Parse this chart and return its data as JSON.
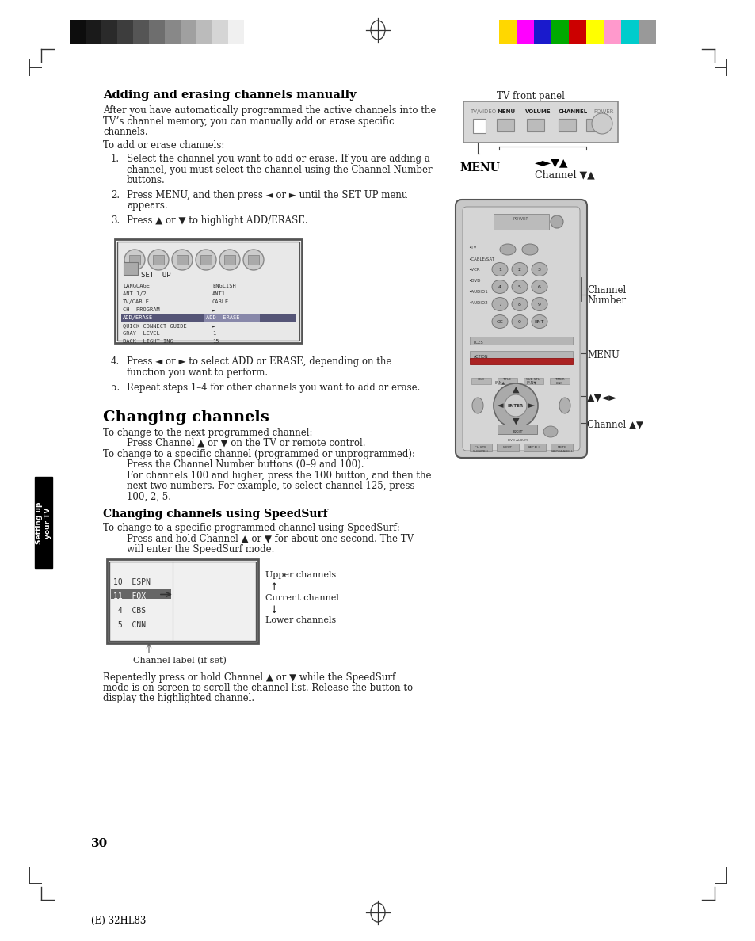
{
  "page_bg": "#ffffff",
  "header_colors_left": [
    "#0d0d0d",
    "#1a1a1a",
    "#2a2a2a",
    "#3d3d3d",
    "#555555",
    "#6e6e6e",
    "#888888",
    "#a0a0a0",
    "#bbbbbb",
    "#d5d5d5",
    "#f0f0f0"
  ],
  "header_colors_right": [
    "#ffd700",
    "#ff00ff",
    "#1a1acc",
    "#00aa00",
    "#cc0000",
    "#ffff00",
    "#ff99cc",
    "#00cccc",
    "#999999"
  ],
  "page_number": "30",
  "footer_text": "(E) 32HL83",
  "sidebar_text": "Setting up\nyour TV",
  "title1": "Adding and erasing channels manually",
  "title2": "Changing channels",
  "title3": "Changing channels using SpeedSurf",
  "body_color": "#222222",
  "title_color": "#000000"
}
